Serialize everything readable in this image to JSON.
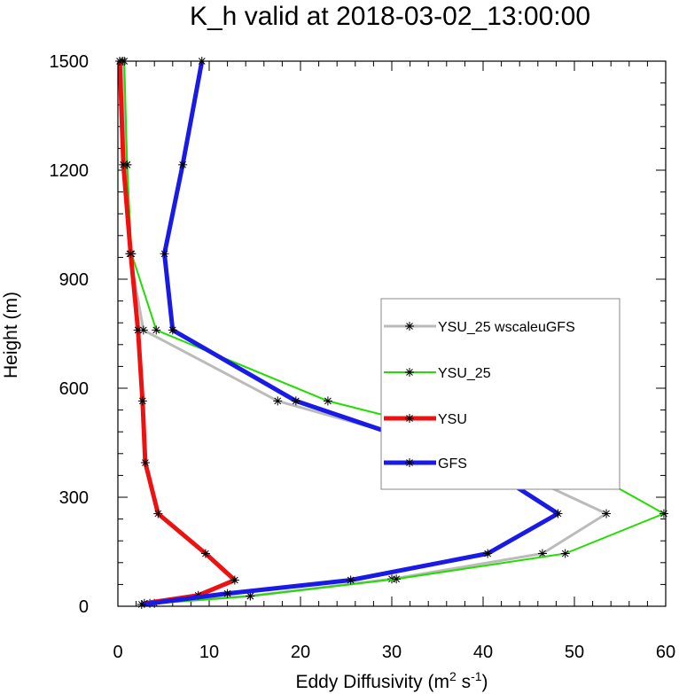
{
  "chart_data": {
    "type": "line",
    "title": "K_h valid at 2018-03-02_13:00:00",
    "xlabel": {
      "text": "Eddy Diffusivity (m",
      "sup1": "2",
      "mid": " s",
      "sup2": "-1",
      "end": ")"
    },
    "ylabel": "Height (m)",
    "xlim": [
      0,
      60
    ],
    "ylim": [
      0,
      1500
    ],
    "x_ticks": [
      0,
      10,
      20,
      30,
      40,
      50,
      60
    ],
    "y_ticks": [
      0,
      300,
      600,
      900,
      1200,
      1500
    ],
    "legend_position": "center-right",
    "series": [
      {
        "name": "YSU_25 wscaleuGFS",
        "color": "#bbbbbb",
        "width": 3,
        "markers": true,
        "points": [
          [
            3.5,
            8
          ],
          [
            14.5,
            28
          ],
          [
            30,
            75
          ],
          [
            46.5,
            145
          ],
          [
            53.5,
            255
          ],
          [
            41.5,
            395
          ],
          [
            17.5,
            565
          ],
          [
            2.8,
            760
          ],
          [
            1.3,
            970
          ],
          [
            1.0,
            1215
          ],
          [
            0.5,
            1500
          ]
        ]
      },
      {
        "name": "YSU_25",
        "color": "#22dd00",
        "width": 2,
        "markers": true,
        "points": [
          [
            4.0,
            8
          ],
          [
            14.5,
            28
          ],
          [
            30.5,
            75
          ],
          [
            49.0,
            145
          ],
          [
            59.8,
            255
          ],
          [
            49.8,
            395
          ],
          [
            23.0,
            565
          ],
          [
            4.2,
            760
          ],
          [
            1.5,
            970
          ],
          [
            1.0,
            1215
          ],
          [
            0.7,
            1500
          ]
        ]
      },
      {
        "name": "YSU",
        "color": "#ee1111",
        "width": 5,
        "markers": true,
        "points": [
          [
            2.9,
            8
          ],
          [
            8.8,
            30
          ],
          [
            12.8,
            72
          ],
          [
            9.6,
            145
          ],
          [
            4.4,
            255
          ],
          [
            3.0,
            395
          ],
          [
            2.7,
            565
          ],
          [
            2.2,
            760
          ],
          [
            1.4,
            970
          ],
          [
            0.6,
            1215
          ],
          [
            0.2,
            1500
          ]
        ]
      },
      {
        "name": "GFS",
        "color": "#1a1ae6",
        "width": 5,
        "markers": true,
        "points": [
          [
            2.6,
            5
          ],
          [
            12.0,
            35
          ],
          [
            25.5,
            72
          ],
          [
            40.5,
            145
          ],
          [
            48.2,
            255
          ],
          [
            39.5,
            395
          ],
          [
            19.5,
            565
          ],
          [
            6.0,
            760
          ],
          [
            5.1,
            970
          ],
          [
            7.1,
            1215
          ],
          [
            9.2,
            1500
          ]
        ]
      }
    ]
  }
}
